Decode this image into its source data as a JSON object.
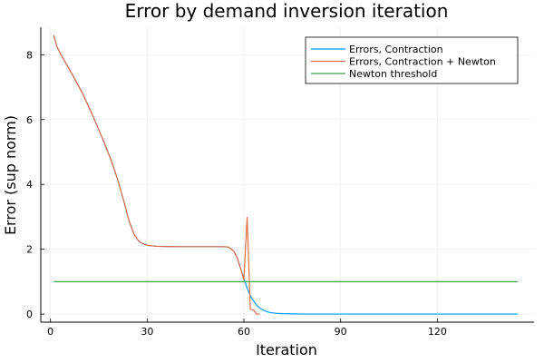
{
  "chart_data": {
    "type": "line",
    "title": "Error by demand inversion iteration",
    "xlabel": "Iteration",
    "ylabel": "Error (sup norm)",
    "xlim": [
      -3,
      150
    ],
    "ylim": [
      -0.25,
      8.85
    ],
    "xticks": [
      0,
      30,
      60,
      90,
      120
    ],
    "yticks": [
      0,
      2,
      4,
      6,
      8
    ],
    "grid": true,
    "legend_position": "top-right",
    "series": [
      {
        "name": "Errors, Contraction",
        "color": "#009AFA",
        "x": [
          1,
          2,
          3,
          5,
          7,
          10,
          13,
          16,
          19,
          21,
          23,
          24,
          25,
          26,
          27,
          28,
          30,
          33,
          36,
          40,
          45,
          50,
          53,
          55,
          56,
          57,
          58,
          59,
          60,
          61,
          62,
          63,
          64,
          65,
          66,
          67,
          68,
          70,
          72,
          75,
          80,
          90,
          100,
          120,
          145
        ],
        "y": [
          8.6,
          8.25,
          8.05,
          7.7,
          7.35,
          6.8,
          6.15,
          5.45,
          4.7,
          4.1,
          3.4,
          3.0,
          2.7,
          2.45,
          2.3,
          2.2,
          2.12,
          2.09,
          2.085,
          2.08,
          2.08,
          2.08,
          2.08,
          2.07,
          2.02,
          1.92,
          1.72,
          1.4,
          1.1,
          0.8,
          0.56,
          0.4,
          0.27,
          0.18,
          0.12,
          0.08,
          0.05,
          0.025,
          0.012,
          0.005,
          0.001,
          0.0,
          0.0,
          0.0,
          0.0
        ]
      },
      {
        "name": "Errors, Contraction + Newton",
        "color": "#E26F46",
        "x": [
          1,
          2,
          3,
          5,
          7,
          10,
          13,
          16,
          19,
          21,
          23,
          24,
          25,
          26,
          27,
          28,
          30,
          33,
          36,
          40,
          45,
          50,
          53,
          55,
          56,
          57,
          58,
          59,
          60,
          61,
          62,
          63,
          64,
          65
        ],
        "y": [
          8.6,
          8.25,
          8.05,
          7.7,
          7.35,
          6.8,
          6.15,
          5.45,
          4.7,
          4.1,
          3.4,
          3.0,
          2.7,
          2.45,
          2.3,
          2.2,
          2.12,
          2.09,
          2.085,
          2.08,
          2.08,
          2.08,
          2.08,
          2.07,
          2.02,
          1.92,
          1.72,
          1.4,
          1.05,
          2.98,
          0.15,
          0.12,
          0.0,
          0.0
        ]
      },
      {
        "name": "Newton threshold",
        "color": "#3DA44D",
        "x": [
          1,
          145
        ],
        "y": [
          1.0,
          1.0
        ]
      }
    ]
  }
}
